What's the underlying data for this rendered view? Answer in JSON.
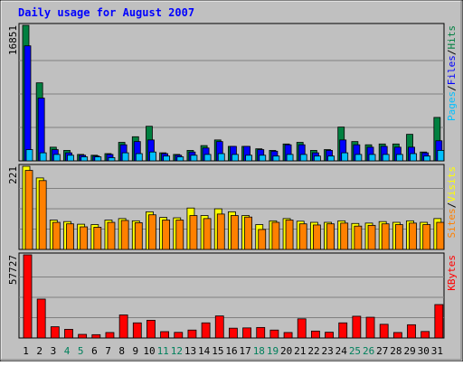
{
  "chart_data": {
    "type": "bar",
    "title": "Daily usage for August 2007",
    "categories": [
      "1",
      "2",
      "3",
      "4",
      "5",
      "6",
      "7",
      "8",
      "9",
      "10",
      "11",
      "12",
      "13",
      "14",
      "15",
      "16",
      "17",
      "18",
      "19",
      "20",
      "21",
      "22",
      "23",
      "24",
      "25",
      "26",
      "27",
      "28",
      "29",
      "30",
      "31"
    ],
    "weekend_days": [
      "4",
      "5",
      "11",
      "12",
      "18",
      "19",
      "25",
      "26"
    ],
    "panels": [
      {
        "name": "pages-files-hits",
        "max_label": "16851",
        "ylim": [
          0,
          16851
        ],
        "legend": [
          "Pages",
          "/",
          "Files",
          "/",
          "Hits"
        ],
        "series": [
          {
            "name": "Hits",
            "color": "#008040",
            "values": [
              16851,
              9700,
              1700,
              1300,
              800,
              700,
              900,
              2300,
              3000,
              4300,
              1000,
              800,
              1300,
              1900,
              2600,
              1800,
              1800,
              1500,
              1300,
              2100,
              2300,
              1300,
              1400,
              4200,
              2400,
              2000,
              2100,
              2100,
              3300,
              1100,
              5400
            ]
          },
          {
            "name": "Files",
            "color": "#0000ff",
            "values": [
              14300,
              7800,
              1400,
              1000,
              700,
              600,
              800,
              2000,
              2400,
              2600,
              900,
              700,
              1100,
              1600,
              2400,
              1800,
              1800,
              1400,
              1200,
              2000,
              2000,
              1000,
              1300,
              2600,
              2000,
              1700,
              1800,
              1700,
              1700,
              1000,
              2500
            ]
          },
          {
            "name": "Pages",
            "color": "#00c0ff",
            "values": [
              1400,
              1000,
              800,
              700,
              500,
              500,
              400,
              1000,
              900,
              1100,
              600,
              500,
              700,
              800,
              900,
              800,
              700,
              700,
              600,
              800,
              800,
              600,
              600,
              1000,
              800,
              800,
              800,
              800,
              900,
              600,
              1300
            ]
          }
        ]
      },
      {
        "name": "visits-sites",
        "max_label": "221",
        "ylim": [
          0,
          221
        ],
        "legend": [
          "Sites",
          "/",
          "Visits"
        ],
        "series": [
          {
            "name": "Visits",
            "color": "#ffff00",
            "values": [
              221,
              190,
              78,
              74,
              67,
              66,
              78,
              82,
              76,
              100,
              85,
              84,
              110,
              90,
              108,
              100,
              90,
              66,
              76,
              82,
              75,
              72,
              72,
              76,
              69,
              70,
              74,
              72,
              76,
              72,
              82
            ]
          },
          {
            "name": "Sites",
            "color": "#ff8000",
            "values": [
              210,
              183,
              72,
              68,
              60,
              59,
              72,
              77,
              71,
              92,
              78,
              78,
              90,
              82,
              94,
              90,
              86,
              53,
              72,
              78,
              68,
              65,
              68,
              70,
              62,
              64,
              68,
              66,
              70,
              66,
              72
            ]
          }
        ]
      },
      {
        "name": "kbytes",
        "max_label": "57727",
        "ylim": [
          0,
          57727
        ],
        "legend": [
          "KBytes"
        ],
        "series": [
          {
            "name": "KBytes",
            "color": "#ff0000",
            "values": [
              57727,
              27000,
              7800,
              6000,
              2500,
              2300,
              3800,
              16000,
              10500,
              12300,
              4400,
              3900,
              5500,
              10500,
              15300,
              6800,
              7000,
              7300,
              5500,
              3800,
              13300,
              4800,
              4000,
              10500,
              15100,
              14400,
              9500,
              3800,
              9200,
              4500,
              23200
            ]
          }
        ]
      }
    ],
    "colors": {
      "background": "#c0c0c0",
      "plot_background": "#c0c0c0",
      "title": "#0000ff",
      "border": "#000000",
      "gridline": "#808080",
      "weekday_label": "#000000",
      "weekend_label": "#00805c"
    }
  }
}
